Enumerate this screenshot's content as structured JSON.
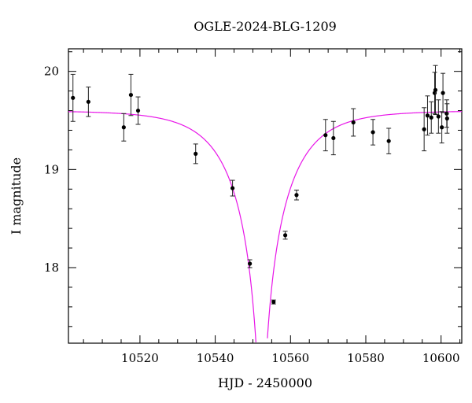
{
  "chart_data": {
    "type": "scatter",
    "title": "OGLE-2024-BLG-1209",
    "xlabel": "HJD - 2450000",
    "ylabel": "I magnitude",
    "xlim": [
      10501,
      10605.5
    ],
    "ylim": [
      20.23,
      17.23
    ],
    "y_inverted": true,
    "x_ticks": [
      10520,
      10540,
      10560,
      10580,
      10600
    ],
    "y_ticks": [
      18,
      19,
      20
    ],
    "grid": false,
    "model_color": "#e815e8",
    "point_color": "#000000",
    "model": {
      "name": "",
      "baseline_mag": 19.6,
      "peak_time": 10552.3,
      "u0": 0.05,
      "tE": 14.5
    },
    "points": [
      {
        "x": 10502.2,
        "y": 19.73,
        "err": 0.24
      },
      {
        "x": 10506.3,
        "y": 19.69,
        "err": 0.15
      },
      {
        "x": 10515.7,
        "y": 19.43,
        "err": 0.14
      },
      {
        "x": 10517.6,
        "y": 19.76,
        "err": 0.21
      },
      {
        "x": 10519.5,
        "y": 19.6,
        "err": 0.14
      },
      {
        "x": 10534.8,
        "y": 19.16,
        "err": 0.1
      },
      {
        "x": 10544.6,
        "y": 18.81,
        "err": 0.08
      },
      {
        "x": 10549.2,
        "y": 18.04,
        "err": 0.04
      },
      {
        "x": 10555.5,
        "y": 17.65,
        "err": 0.02
      },
      {
        "x": 10558.6,
        "y": 18.33,
        "err": 0.04
      },
      {
        "x": 10561.6,
        "y": 18.74,
        "err": 0.05
      },
      {
        "x": 10569.3,
        "y": 19.35,
        "err": 0.16
      },
      {
        "x": 10571.4,
        "y": 19.32,
        "err": 0.17
      },
      {
        "x": 10576.7,
        "y": 19.48,
        "err": 0.14
      },
      {
        "x": 10581.9,
        "y": 19.38,
        "err": 0.13
      },
      {
        "x": 10586.1,
        "y": 19.29,
        "err": 0.13
      },
      {
        "x": 10595.5,
        "y": 19.41,
        "err": 0.22
      },
      {
        "x": 10596.4,
        "y": 19.55,
        "err": 0.2
      },
      {
        "x": 10597.4,
        "y": 19.53,
        "err": 0.16
      },
      {
        "x": 10598.3,
        "y": 19.78,
        "err": 0.21
      },
      {
        "x": 10598.5,
        "y": 19.81,
        "err": 0.25
      },
      {
        "x": 10599.3,
        "y": 19.54,
        "err": 0.17
      },
      {
        "x": 10600.2,
        "y": 19.43,
        "err": 0.16
      },
      {
        "x": 10600.5,
        "y": 19.78,
        "err": 0.2
      },
      {
        "x": 10601.5,
        "y": 19.57,
        "err": 0.14
      },
      {
        "x": 10601.6,
        "y": 19.52,
        "err": 0.15
      }
    ]
  }
}
